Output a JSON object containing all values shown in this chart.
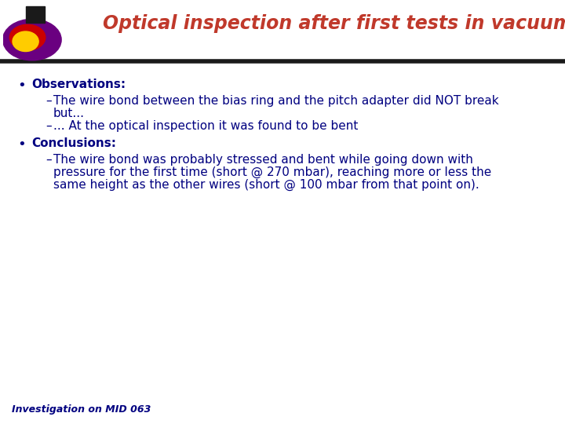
{
  "title": "Optical inspection after first tests in vacuum",
  "title_color": "#c0392b",
  "title_fontsize": 17,
  "background_color": "#ffffff",
  "header_bar_color": "#1a1a1a",
  "bullet1_header": "Observations:",
  "bullet_header_color": "#000080",
  "sub1a_line1": "The wire bond between the bias ring and the pitch adapter did NOT break",
  "sub1a_line2": "but...",
  "sub1b": "... At the optical inspection it was found to be bent",
  "sub_color": "#000080",
  "bullet2_header": "Conclusions:",
  "sub2_line1": "The wire bond was probably stressed and bent while going down with",
  "sub2_line2": "pressure for the first time (short @ 270 mbar), reaching more or less the",
  "sub2_line3": "same height as the other wires (short @ 100 mbar from that point on).",
  "sub2_color": "#000080",
  "footer": "Investigation on MID 063",
  "footer_color": "#000080",
  "body_fontsize": 11,
  "header_fontsize": 11,
  "footer_fontsize": 9
}
